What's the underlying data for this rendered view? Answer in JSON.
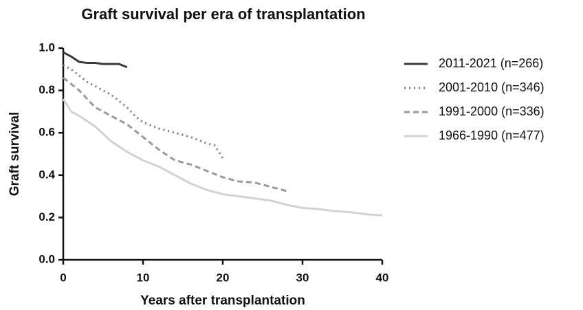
{
  "chart_data": {
    "type": "line",
    "title": "Graft survival per era of transplantation",
    "x_label": "Years after transplantation",
    "y_label": "Graft survival",
    "xlim": [
      0,
      40
    ],
    "xticks": [
      0,
      10,
      20,
      30,
      40
    ],
    "ylim": [
      0,
      1
    ],
    "yticks": [
      {
        "value": 0,
        "label": "0.0"
      },
      0.2,
      0.4,
      0.6,
      0.8,
      {
        "value": 1,
        "label": "1.0"
      }
    ],
    "series": [
      {
        "name": "2011-2021 (n=266)",
        "color": "#3a3a3a",
        "dash": "none",
        "x": [
          0,
          1,
          2,
          3,
          4,
          5,
          6,
          7,
          8
        ],
        "values": [
          0.98,
          0.96,
          0.935,
          0.93,
          0.93,
          0.925,
          0.925,
          0.925,
          0.91
        ]
      },
      {
        "name": "2001-2010 (n=346)",
        "color": "#7a7a7a",
        "dash": "2 5",
        "x": [
          0,
          1,
          2,
          3,
          4,
          5,
          6,
          7,
          8,
          9,
          10,
          12,
          14,
          16,
          18,
          19,
          20
        ],
        "values": [
          0.92,
          0.9,
          0.87,
          0.84,
          0.82,
          0.8,
          0.78,
          0.75,
          0.72,
          0.68,
          0.65,
          0.62,
          0.6,
          0.58,
          0.55,
          0.54,
          0.48
        ]
      },
      {
        "name": "1991-2000 (n=336)",
        "color": "#9a9a9a",
        "dash": "8 5",
        "x": [
          0,
          2,
          4,
          6,
          8,
          10,
          12,
          14,
          16,
          18,
          20,
          22,
          24,
          26,
          28
        ],
        "values": [
          0.86,
          0.8,
          0.72,
          0.68,
          0.64,
          0.58,
          0.52,
          0.47,
          0.45,
          0.42,
          0.39,
          0.37,
          0.365,
          0.345,
          0.325
        ]
      },
      {
        "name": "1966-1990 (n=477)",
        "color": "#d2d2d2",
        "dash": "none",
        "x": [
          0,
          1,
          2,
          4,
          6,
          8,
          10,
          12,
          14,
          16,
          18,
          20,
          22,
          24,
          26,
          28,
          30,
          32,
          34,
          36,
          38,
          40
        ],
        "values": [
          0.76,
          0.7,
          0.68,
          0.63,
          0.56,
          0.51,
          0.47,
          0.44,
          0.4,
          0.36,
          0.33,
          0.31,
          0.3,
          0.29,
          0.28,
          0.26,
          0.245,
          0.24,
          0.23,
          0.225,
          0.215,
          0.21
        ]
      }
    ]
  }
}
